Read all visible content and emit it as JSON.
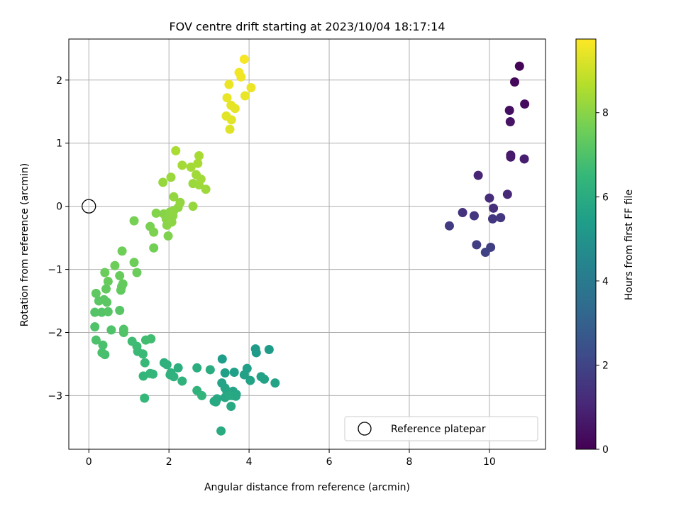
{
  "chart_data": {
    "type": "scatter",
    "title": "FOV centre drift starting at 2023/10/04 18:17:14",
    "xlabel": "Angular distance from reference (arcmin)",
    "ylabel": "Rotation from reference (arcmin)",
    "xlim": [
      -0.5,
      11.4
    ],
    "ylim": [
      -3.85,
      2.65
    ],
    "xticks": [
      0,
      2,
      4,
      6,
      8,
      10
    ],
    "yticks": [
      -3,
      -2,
      -1,
      0,
      1,
      2
    ],
    "grid": true,
    "legend": {
      "position": "lower-right",
      "entries": [
        "Reference platepar"
      ]
    },
    "reference_point": {
      "x": 0,
      "y": 0
    },
    "colorbar": {
      "label": "Hours from first FF file",
      "range": [
        0,
        9.75
      ],
      "ticks": [
        0,
        2,
        4,
        6,
        8
      ],
      "colormap": "viridis"
    },
    "points": [
      {
        "x": 10.75,
        "y": 2.22,
        "c": 0.1
      },
      {
        "x": 10.63,
        "y": 1.97,
        "c": 0.2
      },
      {
        "x": 10.88,
        "y": 1.62,
        "c": 0.3
      },
      {
        "x": 10.5,
        "y": 1.52,
        "c": 0.4
      },
      {
        "x": 10.52,
        "y": 1.34,
        "c": 0.5
      },
      {
        "x": 10.53,
        "y": 0.81,
        "c": 0.6
      },
      {
        "x": 10.53,
        "y": 0.78,
        "c": 0.7
      },
      {
        "x": 10.87,
        "y": 0.75,
        "c": 0.8
      },
      {
        "x": 9.72,
        "y": 0.49,
        "c": 1.0
      },
      {
        "x": 10.45,
        "y": 0.19,
        "c": 1.1
      },
      {
        "x": 10.0,
        "y": 0.13,
        "c": 1.2
      },
      {
        "x": 10.1,
        "y": -0.03,
        "c": 1.3
      },
      {
        "x": 9.33,
        "y": -0.1,
        "c": 1.4
      },
      {
        "x": 9.62,
        "y": -0.15,
        "c": 1.5
      },
      {
        "x": 10.28,
        "y": -0.18,
        "c": 1.55
      },
      {
        "x": 10.08,
        "y": -0.2,
        "c": 1.6
      },
      {
        "x": 9.0,
        "y": -0.31,
        "c": 1.7
      },
      {
        "x": 9.68,
        "y": -0.61,
        "c": 1.8
      },
      {
        "x": 10.03,
        "y": -0.65,
        "c": 1.85
      },
      {
        "x": 9.9,
        "y": -0.73,
        "c": 1.9
      },
      {
        "x": 4.16,
        "y": -2.26,
        "c": 5.3
      },
      {
        "x": 4.18,
        "y": -2.32,
        "c": 5.3
      },
      {
        "x": 4.5,
        "y": -2.27,
        "c": 5.35
      },
      {
        "x": 3.33,
        "y": -2.42,
        "c": 5.4
      },
      {
        "x": 3.95,
        "y": -2.57,
        "c": 5.45
      },
      {
        "x": 3.63,
        "y": -2.63,
        "c": 5.5
      },
      {
        "x": 3.4,
        "y": -2.64,
        "c": 5.5
      },
      {
        "x": 3.88,
        "y": -2.67,
        "c": 5.55
      },
      {
        "x": 4.3,
        "y": -2.7,
        "c": 5.55
      },
      {
        "x": 4.38,
        "y": -2.74,
        "c": 5.6
      },
      {
        "x": 4.03,
        "y": -2.76,
        "c": 5.6
      },
      {
        "x": 4.65,
        "y": -2.8,
        "c": 5.6
      },
      {
        "x": 3.32,
        "y": -2.8,
        "c": 5.65
      },
      {
        "x": 3.4,
        "y": -2.88,
        "c": 5.7
      },
      {
        "x": 3.6,
        "y": -2.93,
        "c": 5.7
      },
      {
        "x": 3.45,
        "y": -2.96,
        "c": 5.75
      },
      {
        "x": 3.68,
        "y": -2.98,
        "c": 5.75
      },
      {
        "x": 3.58,
        "y": -3.0,
        "c": 5.8
      },
      {
        "x": 3.67,
        "y": -3.01,
        "c": 5.8
      },
      {
        "x": 3.4,
        "y": -3.03,
        "c": 5.8
      },
      {
        "x": 3.5,
        "y": -3.0,
        "c": 5.85
      },
      {
        "x": 3.2,
        "y": -3.05,
        "c": 5.85
      },
      {
        "x": 3.13,
        "y": -3.09,
        "c": 5.9
      },
      {
        "x": 3.17,
        "y": -3.1,
        "c": 5.9
      },
      {
        "x": 3.55,
        "y": -3.17,
        "c": 5.9
      },
      {
        "x": 3.3,
        "y": -3.56,
        "c": 5.95
      },
      {
        "x": 3.03,
        "y": -2.59,
        "c": 6.0
      },
      {
        "x": 2.7,
        "y": -2.56,
        "c": 6.05
      },
      {
        "x": 2.23,
        "y": -2.56,
        "c": 6.1
      },
      {
        "x": 1.88,
        "y": -2.48,
        "c": 6.15
      },
      {
        "x": 1.95,
        "y": -2.51,
        "c": 6.2
      },
      {
        "x": 2.05,
        "y": -2.64,
        "c": 6.2
      },
      {
        "x": 2.03,
        "y": -2.67,
        "c": 6.25
      },
      {
        "x": 2.12,
        "y": -2.7,
        "c": 6.25
      },
      {
        "x": 2.33,
        "y": -2.77,
        "c": 6.3
      },
      {
        "x": 2.7,
        "y": -2.92,
        "c": 6.3
      },
      {
        "x": 2.82,
        "y": -3.0,
        "c": 6.35
      },
      {
        "x": 1.36,
        "y": -2.69,
        "c": 6.4
      },
      {
        "x": 1.53,
        "y": -2.65,
        "c": 6.45
      },
      {
        "x": 1.6,
        "y": -2.66,
        "c": 6.45
      },
      {
        "x": 1.39,
        "y": -3.04,
        "c": 6.5
      },
      {
        "x": 1.4,
        "y": -2.48,
        "c": 6.55
      },
      {
        "x": 1.35,
        "y": -2.34,
        "c": 6.6
      },
      {
        "x": 1.22,
        "y": -2.3,
        "c": 6.6
      },
      {
        "x": 1.2,
        "y": -2.22,
        "c": 6.65
      },
      {
        "x": 1.08,
        "y": -2.14,
        "c": 6.7
      },
      {
        "x": 1.42,
        "y": -2.12,
        "c": 6.75
      },
      {
        "x": 1.55,
        "y": -2.1,
        "c": 6.75
      },
      {
        "x": 0.4,
        "y": -2.35,
        "c": 6.85
      },
      {
        "x": 0.33,
        "y": -2.32,
        "c": 6.9
      },
      {
        "x": 0.35,
        "y": -2.2,
        "c": 6.9
      },
      {
        "x": 0.18,
        "y": -2.12,
        "c": 6.95
      },
      {
        "x": 0.15,
        "y": -1.91,
        "c": 7.0
      },
      {
        "x": 0.56,
        "y": -1.96,
        "c": 7.0
      },
      {
        "x": 0.87,
        "y": -1.95,
        "c": 7.05
      },
      {
        "x": 0.87,
        "y": -2.0,
        "c": 7.05
      },
      {
        "x": 0.15,
        "y": -1.68,
        "c": 7.1
      },
      {
        "x": 0.32,
        "y": -1.68,
        "c": 7.1
      },
      {
        "x": 0.48,
        "y": -1.67,
        "c": 7.15
      },
      {
        "x": 0.77,
        "y": -1.65,
        "c": 7.15
      },
      {
        "x": 0.25,
        "y": -1.5,
        "c": 7.2
      },
      {
        "x": 0.38,
        "y": -1.48,
        "c": 7.2
      },
      {
        "x": 0.45,
        "y": -1.52,
        "c": 7.25
      },
      {
        "x": 0.18,
        "y": -1.38,
        "c": 7.3
      },
      {
        "x": 0.43,
        "y": -1.31,
        "c": 7.35
      },
      {
        "x": 0.8,
        "y": -1.33,
        "c": 7.35
      },
      {
        "x": 0.82,
        "y": -1.27,
        "c": 7.4
      },
      {
        "x": 0.85,
        "y": -1.23,
        "c": 7.4
      },
      {
        "x": 0.48,
        "y": -1.19,
        "c": 7.45
      },
      {
        "x": 0.77,
        "y": -1.1,
        "c": 7.45
      },
      {
        "x": 0.4,
        "y": -1.05,
        "c": 7.5
      },
      {
        "x": 1.2,
        "y": -1.05,
        "c": 7.5
      },
      {
        "x": 0.65,
        "y": -0.94,
        "c": 7.55
      },
      {
        "x": 1.13,
        "y": -0.89,
        "c": 7.55
      },
      {
        "x": 0.83,
        "y": -0.71,
        "c": 7.6
      },
      {
        "x": 1.62,
        "y": -0.66,
        "c": 7.65
      },
      {
        "x": 1.13,
        "y": -0.23,
        "c": 7.7
      },
      {
        "x": 1.53,
        "y": -0.32,
        "c": 7.75
      },
      {
        "x": 1.62,
        "y": -0.41,
        "c": 7.8
      },
      {
        "x": 1.98,
        "y": -0.47,
        "c": 7.85
      },
      {
        "x": 1.68,
        "y": -0.11,
        "c": 7.9
      },
      {
        "x": 1.87,
        "y": -0.12,
        "c": 7.95
      },
      {
        "x": 2.03,
        "y": -0.09,
        "c": 8.0
      },
      {
        "x": 1.93,
        "y": -0.2,
        "c": 8.0
      },
      {
        "x": 1.95,
        "y": -0.3,
        "c": 8.0
      },
      {
        "x": 2.07,
        "y": -0.25,
        "c": 8.05
      },
      {
        "x": 2.1,
        "y": -0.15,
        "c": 8.05
      },
      {
        "x": 2.12,
        "y": -0.07,
        "c": 8.1
      },
      {
        "x": 2.23,
        "y": -0.02,
        "c": 8.1
      },
      {
        "x": 2.28,
        "y": 0.06,
        "c": 8.15
      },
      {
        "x": 2.12,
        "y": 0.15,
        "c": 8.15
      },
      {
        "x": 2.6,
        "y": 0.0,
        "c": 8.2
      },
      {
        "x": 1.85,
        "y": 0.38,
        "c": 8.2
      },
      {
        "x": 2.05,
        "y": 0.46,
        "c": 8.25
      },
      {
        "x": 2.6,
        "y": 0.36,
        "c": 8.25
      },
      {
        "x": 2.75,
        "y": 0.34,
        "c": 8.3
      },
      {
        "x": 2.92,
        "y": 0.27,
        "c": 8.3
      },
      {
        "x": 2.8,
        "y": 0.43,
        "c": 8.35
      },
      {
        "x": 2.68,
        "y": 0.5,
        "c": 8.35
      },
      {
        "x": 2.55,
        "y": 0.62,
        "c": 8.4
      },
      {
        "x": 2.33,
        "y": 0.65,
        "c": 8.4
      },
      {
        "x": 2.72,
        "y": 0.68,
        "c": 8.45
      },
      {
        "x": 2.75,
        "y": 0.8,
        "c": 8.45
      },
      {
        "x": 2.17,
        "y": 0.88,
        "c": 8.5
      },
      {
        "x": 3.52,
        "y": 1.22,
        "c": 9.3
      },
      {
        "x": 3.56,
        "y": 1.37,
        "c": 9.35
      },
      {
        "x": 3.43,
        "y": 1.43,
        "c": 9.35
      },
      {
        "x": 3.65,
        "y": 1.55,
        "c": 9.4
      },
      {
        "x": 3.55,
        "y": 1.6,
        "c": 9.4
      },
      {
        "x": 3.45,
        "y": 1.72,
        "c": 9.45
      },
      {
        "x": 3.9,
        "y": 1.75,
        "c": 9.45
      },
      {
        "x": 4.05,
        "y": 1.88,
        "c": 9.5
      },
      {
        "x": 3.5,
        "y": 1.93,
        "c": 9.5
      },
      {
        "x": 3.8,
        "y": 2.05,
        "c": 9.55
      },
      {
        "x": 3.75,
        "y": 2.12,
        "c": 9.6
      },
      {
        "x": 3.88,
        "y": 2.33,
        "c": 9.65
      }
    ]
  }
}
